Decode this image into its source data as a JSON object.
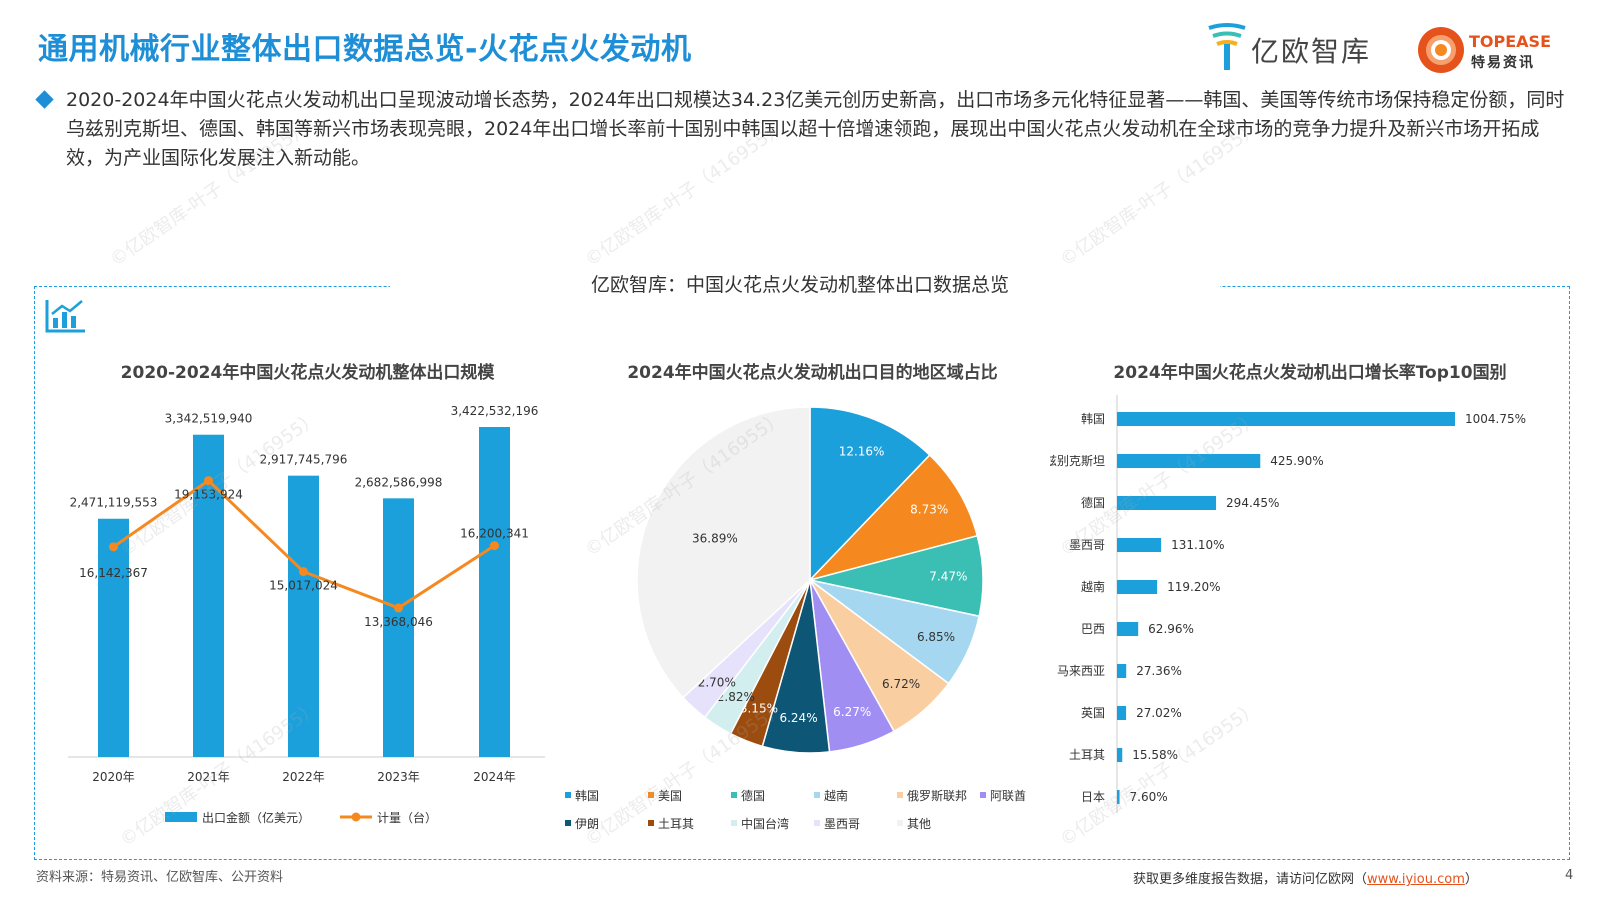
{
  "page": {
    "title": "通用机械行业整体出口数据总览-火花点火发动机",
    "logo_yiou": "亿欧智库",
    "logo_topease_en": "TOPEASE",
    "logo_topease_cn": "特易资讯",
    "intro": "2020-2024年中国火花点火发动机出口呈现波动增长态势，2024年出口规模达34.23亿美元创历史新高，出口市场多元化特征显著——韩国、美国等传统市场保持稳定份额，同时乌兹别克斯坦、德国、韩国等新兴市场表现亮眼，2024年出口增长率前十国别中韩国以超十倍增速领跑，展现出中国火花点火发动机在全球市场的竞争力提升及新兴市场开拓成效，为产业国际化发展注入新动能。",
    "frame_title": "亿欧智库：中国火花点火发动机整体出口数据总览",
    "footer_source": "资料来源：特易资讯、亿欧智库、公开资料",
    "footer_more": "获取更多维度报告数据，请访问亿欧网（",
    "footer_link": "www.iyiou.com",
    "footer_close": "）",
    "page_number": "4",
    "watermark": "©亿欧智库-叶子（416955）"
  },
  "chart_data": [
    {
      "type": "bar",
      "title": "2020-2024年中国火花点火发动机整体出口规模",
      "categories": [
        "2020年",
        "2021年",
        "2022年",
        "2023年",
        "2024年"
      ],
      "series": [
        {
          "name": "出口金额（亿美元）",
          "type": "bar",
          "color": "#1ba0dc",
          "values": [
            2471119553,
            3342519940,
            2917745796,
            2682586998,
            3422532196
          ],
          "labels": [
            "2,471,119,553",
            "3,342,519,940",
            "2,917,745,796",
            "2,682,586,998",
            "3,422,532,196"
          ]
        },
        {
          "name": "计量（台）",
          "type": "line",
          "color": "#f5891f",
          "values": [
            16142367,
            19153924,
            15017024,
            13368046,
            16200341
          ],
          "labels": [
            "16,142,367",
            "19,153,924",
            "15,017,024",
            "13,368,046",
            "16,200,341"
          ]
        }
      ]
    },
    {
      "type": "pie",
      "title": "2024年中国火花点火发动机出口目的地区域占比",
      "slices": [
        {
          "name": "韩国",
          "value": 12.16,
          "label": "12.16%",
          "color": "#1ba0dc"
        },
        {
          "name": "美国",
          "value": 8.73,
          "label": "8.73%",
          "color": "#f5891f"
        },
        {
          "name": "德国",
          "value": 7.47,
          "label": "7.47%",
          "color": "#3bbfb4"
        },
        {
          "name": "越南",
          "value": 6.85,
          "label": "6.85%",
          "color": "#a5d8f0"
        },
        {
          "name": "俄罗斯联邦",
          "value": 6.72,
          "label": "6.72%",
          "color": "#f9cfa2"
        },
        {
          "name": "阿联酋",
          "value": 6.27,
          "label": "6.27%",
          "color": "#a18ef2"
        },
        {
          "name": "伊朗",
          "value": 6.24,
          "label": "6.24%",
          "color": "#0e5675"
        },
        {
          "name": "土耳其",
          "value": 3.15,
          "label": "3.15%",
          "color": "#9c4c0e"
        },
        {
          "name": "中国台湾",
          "value": 2.82,
          "label": "2.82%",
          "color": "#d3eeee"
        },
        {
          "name": "墨西哥",
          "value": 2.7,
          "label": "2.70%",
          "color": "#e6e2fb"
        },
        {
          "name": "其他",
          "value": 36.89,
          "label": "36.89%",
          "color": "#f2f2f2"
        }
      ]
    },
    {
      "type": "bar",
      "orientation": "horizontal",
      "title": "2024年中国火花点火发动机出口增长率Top10国别",
      "categories": [
        "韩国",
        "乌兹别克斯坦",
        "德国",
        "墨西哥",
        "越南",
        "巴西",
        "马来西亚",
        "英国",
        "土耳其",
        "日本"
      ],
      "values": [
        1004.75,
        425.9,
        294.45,
        131.1,
        119.2,
        62.96,
        27.36,
        27.02,
        15.58,
        7.6
      ],
      "labels": [
        "1004.75%",
        "425.90%",
        "294.45%",
        "131.10%",
        "119.20%",
        "62.96%",
        "27.36%",
        "27.02%",
        "15.58%",
        "7.60%"
      ],
      "color": "#1ba0dc"
    }
  ]
}
